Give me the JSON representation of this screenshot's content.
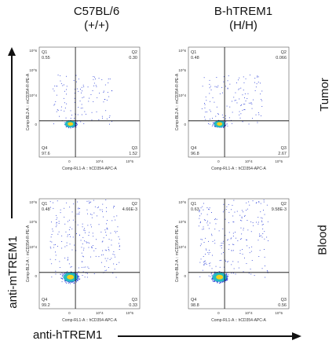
{
  "columns": [
    {
      "title": "C57BL/6",
      "genotype": "(+/+)"
    },
    {
      "title": "B-hTREM1",
      "genotype": "(H/H)"
    }
  ],
  "rows": [
    "Tumor",
    "Blood"
  ],
  "y_axis_title": "anti-mTREM1",
  "x_axis_title": "anti-hTREM1",
  "channel_x": "Comp-RL1-A :: hCD354-APC-A",
  "channel_y_tumor": "Comp-BL2-A :: mCD354-R-PE-A",
  "channel_y_blood": "Comp-BL2-A :: mCD354-R-PE-A",
  "colors": {
    "dots": "#2b3fd6",
    "core_mid": "#22c7c0",
    "core_hot": "#f2d21a",
    "gate": "#000000"
  },
  "chart_data": [
    {
      "type": "scatter",
      "panel": "tumor-c57",
      "quadrants": {
        "Q1": "0.55",
        "Q2": "0.30",
        "Q3": "1.52",
        "Q4": "97.6"
      },
      "x_ticks": [
        "0",
        "10^4",
        "10^5"
      ],
      "y_ticks": [
        "0",
        "10^4",
        "10^5",
        "10^6"
      ]
    },
    {
      "type": "scatter",
      "panel": "tumor-htrem1",
      "quadrants": {
        "Q1": "0.48",
        "Q2": "0.066",
        "Q3": "2.67",
        "Q4": "96.8"
      },
      "x_ticks": [
        "0",
        "10^4",
        "10^5"
      ],
      "y_ticks": [
        "0",
        "10^4",
        "10^5",
        "10^6"
      ]
    },
    {
      "type": "scatter",
      "panel": "blood-c57",
      "quadrants": {
        "Q1": "0.48",
        "Q2": "4.66E-3",
        "Q3": "0.33",
        "Q4": "99.2"
      },
      "x_ticks": [
        "0",
        "10^4",
        "10^5"
      ],
      "y_ticks": [
        "0",
        "10^4",
        "10^5",
        "10^6"
      ]
    },
    {
      "type": "scatter",
      "panel": "blood-htrem1",
      "quadrants": {
        "Q1": "0.63",
        "Q2": "9.58E-3",
        "Q3": "0.56",
        "Q4": "98.8"
      },
      "x_ticks": [
        "0",
        "10^4",
        "10^5"
      ],
      "y_ticks": [
        "0",
        "10^4",
        "10^5",
        "10^6"
      ]
    }
  ]
}
